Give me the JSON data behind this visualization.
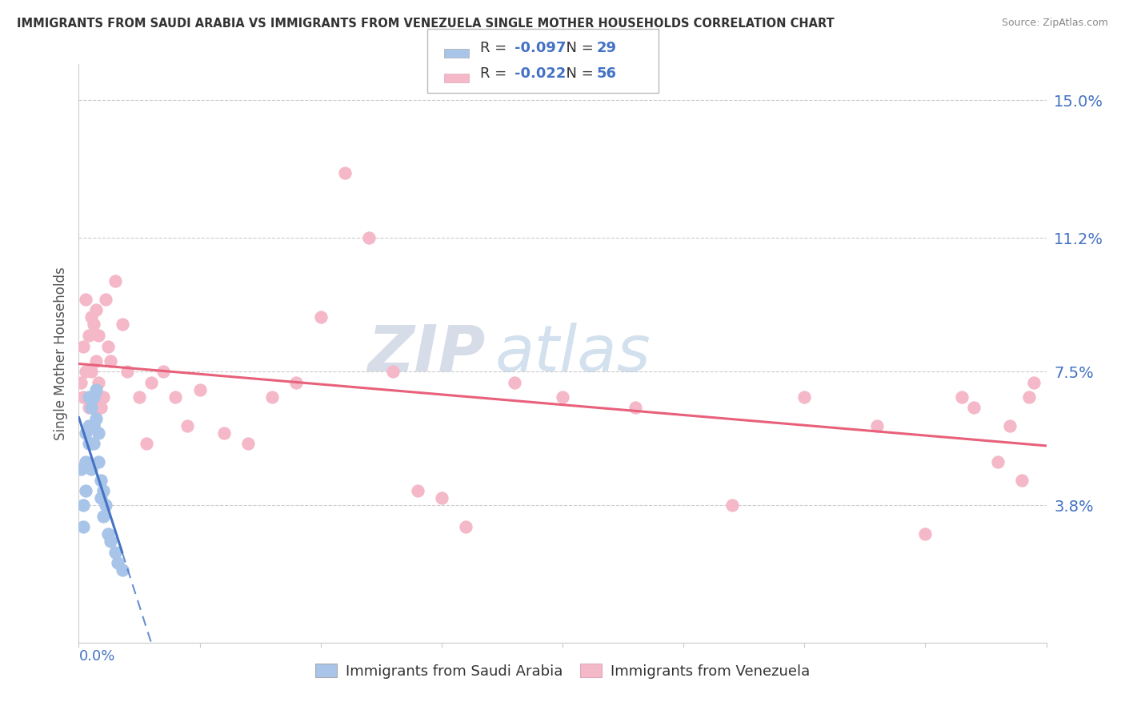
{
  "title": "IMMIGRANTS FROM SAUDI ARABIA VS IMMIGRANTS FROM VENEZUELA SINGLE MOTHER HOUSEHOLDS CORRELATION CHART",
  "source": "Source: ZipAtlas.com",
  "ylabel": "Single Mother Households",
  "xlim": [
    0.0,
    0.4
  ],
  "ylim": [
    0.0,
    0.16
  ],
  "saudi_color": "#a8c4e8",
  "venezuela_color": "#f4b8c8",
  "saudi_line_color": "#4472c4",
  "venezuela_line_color": "#e8607a",
  "saudi_R": -0.097,
  "saudi_N": 29,
  "venezuela_R": -0.022,
  "venezuela_N": 56,
  "watermark_zip": "ZIP",
  "watermark_atlas": "atlas",
  "right_ytick_vals": [
    0.0,
    0.038,
    0.075,
    0.112,
    0.15
  ],
  "right_ytick_labels": [
    "",
    "3.8%",
    "7.5%",
    "11.2%",
    "15.0%"
  ],
  "saudi_points_x": [
    0.001,
    0.002,
    0.002,
    0.003,
    0.003,
    0.003,
    0.004,
    0.004,
    0.004,
    0.005,
    0.005,
    0.005,
    0.006,
    0.006,
    0.006,
    0.007,
    0.007,
    0.008,
    0.008,
    0.009,
    0.009,
    0.01,
    0.01,
    0.011,
    0.012,
    0.013,
    0.015,
    0.016,
    0.018
  ],
  "saudi_points_y": [
    0.048,
    0.038,
    0.032,
    0.042,
    0.05,
    0.058,
    0.06,
    0.068,
    0.055,
    0.065,
    0.055,
    0.048,
    0.06,
    0.068,
    0.055,
    0.062,
    0.07,
    0.058,
    0.05,
    0.045,
    0.04,
    0.042,
    0.035,
    0.038,
    0.03,
    0.028,
    0.025,
    0.022,
    0.02
  ],
  "venezuela_points_x": [
    0.001,
    0.002,
    0.002,
    0.003,
    0.003,
    0.004,
    0.004,
    0.005,
    0.005,
    0.006,
    0.006,
    0.006,
    0.007,
    0.007,
    0.008,
    0.008,
    0.009,
    0.01,
    0.011,
    0.012,
    0.013,
    0.015,
    0.018,
    0.02,
    0.025,
    0.028,
    0.03,
    0.035,
    0.04,
    0.045,
    0.05,
    0.06,
    0.07,
    0.08,
    0.09,
    0.1,
    0.11,
    0.12,
    0.13,
    0.14,
    0.15,
    0.16,
    0.18,
    0.2,
    0.23,
    0.27,
    0.3,
    0.33,
    0.35,
    0.365,
    0.37,
    0.38,
    0.385,
    0.39,
    0.393,
    0.395
  ],
  "venezuela_points_y": [
    0.072,
    0.082,
    0.068,
    0.095,
    0.075,
    0.085,
    0.065,
    0.09,
    0.075,
    0.088,
    0.065,
    0.06,
    0.092,
    0.078,
    0.085,
    0.072,
    0.065,
    0.068,
    0.095,
    0.082,
    0.078,
    0.1,
    0.088,
    0.075,
    0.068,
    0.055,
    0.072,
    0.075,
    0.068,
    0.06,
    0.07,
    0.058,
    0.055,
    0.068,
    0.072,
    0.09,
    0.13,
    0.112,
    0.075,
    0.042,
    0.04,
    0.032,
    0.072,
    0.068,
    0.065,
    0.038,
    0.068,
    0.06,
    0.03,
    0.068,
    0.065,
    0.05,
    0.06,
    0.045,
    0.068,
    0.072
  ]
}
